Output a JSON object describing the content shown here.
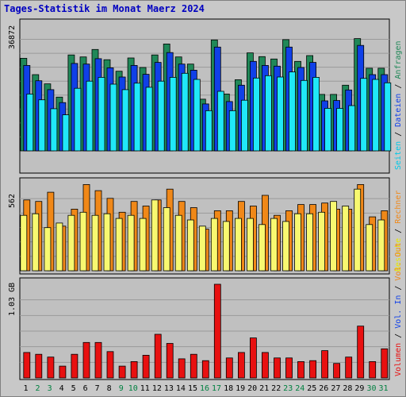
{
  "title": "Tages-Statistik im Monat Maerz 2024",
  "colors": {
    "background": "#c8c8c8",
    "plot_background": "#c0c0c0",
    "title": "#0000c0",
    "hits": "#208858",
    "files": "#1040e8",
    "pages": "#20e8f8",
    "visits": "#f08818",
    "sites": "#f8f870",
    "kbytes": "#e81010",
    "weekday_label": "#000000",
    "weekend_label": "#008040",
    "legend_sep": "#000000"
  },
  "chart_data": [
    {
      "type": "bar",
      "panel": "top",
      "ytick_label": "36872",
      "ymax": 36872,
      "categories": [
        "1",
        "2",
        "3",
        "4",
        "5",
        "6",
        "7",
        "8",
        "9",
        "10",
        "11",
        "12",
        "13",
        "14",
        "15",
        "16",
        "17",
        "18",
        "19",
        "20",
        "21",
        "22",
        "23",
        "24",
        "25",
        "26",
        "27",
        "28",
        "29",
        "30",
        "31"
      ],
      "weekend": [
        false,
        true,
        true,
        false,
        false,
        false,
        false,
        false,
        true,
        true,
        false,
        false,
        false,
        false,
        false,
        true,
        true,
        false,
        false,
        false,
        false,
        false,
        true,
        true,
        false,
        false,
        false,
        false,
        false,
        true,
        true
      ],
      "legend": [
        "Anfragen",
        "Dateien",
        "Seiten"
      ],
      "series": [
        {
          "name": "Anfragen",
          "color_key": "hits",
          "values": [
            27200,
            22400,
            19700,
            15800,
            28200,
            27600,
            29800,
            26800,
            23400,
            27300,
            24500,
            28200,
            31400,
            27600,
            25500,
            15200,
            32600,
            16700,
            20900,
            28800,
            27700,
            27000,
            32700,
            26300,
            28000,
            16600,
            16600,
            19300,
            33000,
            24300,
            24300
          ]
        },
        {
          "name": "Dateien",
          "color_key": "files",
          "values": [
            25100,
            20600,
            18000,
            14200,
            25700,
            25500,
            27100,
            24400,
            21700,
            25100,
            22500,
            26000,
            28900,
            25500,
            23700,
            13800,
            30500,
            14500,
            19300,
            26300,
            25100,
            24900,
            30500,
            24500,
            26000,
            14700,
            14800,
            17900,
            31000,
            22400,
            22400
          ]
        },
        {
          "name": "Seiten",
          "color_key": "pages",
          "values": [
            16700,
            15000,
            12400,
            10600,
            18400,
            20500,
            21600,
            19600,
            18000,
            19900,
            18700,
            20500,
            21600,
            22800,
            21000,
            11800,
            17500,
            11800,
            14900,
            21400,
            22100,
            21700,
            23200,
            20700,
            21600,
            12500,
            12500,
            13300,
            21300,
            21000,
            20000
          ]
        }
      ]
    },
    {
      "type": "bar",
      "panel": "middle",
      "ytick_label": "562",
      "ymax": 562,
      "legend": [
        "Besuche",
        "Rechner"
      ],
      "series": [
        {
          "name": "Besuche",
          "color_key": "visits",
          "values": [
            460,
            450,
            510,
            290,
            400,
            560,
            520,
            470,
            380,
            450,
            420,
            460,
            530,
            450,
            410,
            270,
            390,
            390,
            450,
            420,
            490,
            360,
            390,
            430,
            430,
            440,
            400,
            400,
            560,
            350,
            390
          ]
        },
        {
          "name": "Rechner",
          "color_key": "sites",
          "values": [
            360,
            370,
            280,
            310,
            360,
            380,
            360,
            370,
            340,
            360,
            340,
            460,
            410,
            360,
            330,
            290,
            340,
            320,
            340,
            340,
            300,
            340,
            320,
            370,
            370,
            380,
            450,
            420,
            530,
            300,
            330
          ]
        }
      ]
    },
    {
      "type": "bar",
      "panel": "bottom",
      "ytick_label": "1.03 GB",
      "ymax": 1.03,
      "legend": [
        "Volumen",
        "Vol. In",
        "Vol. Out"
      ],
      "series": [
        {
          "name": "Volumen",
          "color_key": "kbytes",
          "values": [
            0.28,
            0.26,
            0.23,
            0.13,
            0.26,
            0.39,
            0.39,
            0.29,
            0.13,
            0.18,
            0.25,
            0.48,
            0.38,
            0.21,
            0.26,
            0.19,
            1.03,
            0.22,
            0.28,
            0.44,
            0.28,
            0.22,
            0.22,
            0.18,
            0.19,
            0.3,
            0.16,
            0.23,
            0.57,
            0.18,
            0.32
          ]
        }
      ]
    }
  ]
}
